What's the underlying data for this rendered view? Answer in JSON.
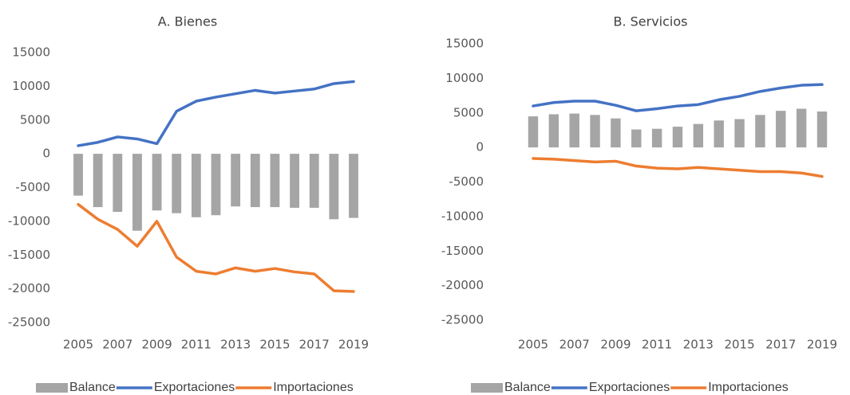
{
  "chart_data": [
    {
      "type": "combo",
      "title": "A. Bienes",
      "categories": [
        "2005",
        null,
        "2007",
        null,
        "2009",
        null,
        "2011",
        null,
        "2013",
        null,
        "2015",
        null,
        "2017",
        null,
        "2019"
      ],
      "ylim": [
        -25000,
        15000
      ],
      "yticks": [
        -25000,
        -20000,
        -15000,
        -10000,
        -5000,
        0,
        5000,
        10000,
        15000
      ],
      "grid": false,
      "legend": "bottom",
      "series": [
        {
          "name": "Balance",
          "type": "bar",
          "color": "#a5a5a5",
          "values": [
            -6200,
            -7900,
            -8600,
            -11400,
            -8400,
            -8800,
            -9400,
            -9100,
            -7800,
            -7900,
            -7900,
            -8000,
            -8000,
            -9700,
            -9500
          ]
        },
        {
          "name": "Exportaciones",
          "type": "line",
          "color": "#4472c4",
          "values": [
            1200,
            1700,
            2500,
            2200,
            1500,
            6300,
            7800,
            8400,
            8900,
            9400,
            9000,
            9300,
            9600,
            10400,
            10700
          ]
        },
        {
          "name": "Importaciones",
          "type": "line",
          "color": "#ed7d31",
          "values": [
            -7500,
            -9700,
            -11200,
            -13700,
            -10000,
            -15300,
            -17400,
            -17800,
            -16900,
            -17400,
            -17000,
            -17500,
            -17800,
            -20300,
            -20400
          ]
        }
      ]
    },
    {
      "type": "combo",
      "title": "B. Servicios",
      "categories": [
        "2005",
        null,
        "2007",
        null,
        "2009",
        null,
        "2011",
        null,
        "2013",
        null,
        "2015",
        null,
        "2017",
        null,
        "2019"
      ],
      "ylim": [
        -25000,
        15000
      ],
      "yticks": [
        -25000,
        -20000,
        -15000,
        -10000,
        -5000,
        0,
        5000,
        10000,
        15000
      ],
      "grid": false,
      "legend": "bottom",
      "series": [
        {
          "name": "Balance",
          "type": "bar",
          "color": "#a5a5a5",
          "values": [
            4500,
            4800,
            4900,
            4700,
            4200,
            2600,
            2700,
            3000,
            3400,
            3900,
            4100,
            4700,
            5300,
            5600,
            5200
          ]
        },
        {
          "name": "Exportaciones",
          "type": "line",
          "color": "#4472c4",
          "values": [
            6000,
            6500,
            6700,
            6700,
            6100,
            5300,
            5600,
            6000,
            6200,
            6900,
            7400,
            8100,
            8600,
            9000,
            9100
          ]
        },
        {
          "name": "Importaciones",
          "type": "line",
          "color": "#ed7d31",
          "values": [
            -1600,
            -1700,
            -1900,
            -2100,
            -2000,
            -2700,
            -3000,
            -3100,
            -2900,
            -3100,
            -3300,
            -3500,
            -3500,
            -3700,
            -4200
          ]
        }
      ]
    }
  ]
}
